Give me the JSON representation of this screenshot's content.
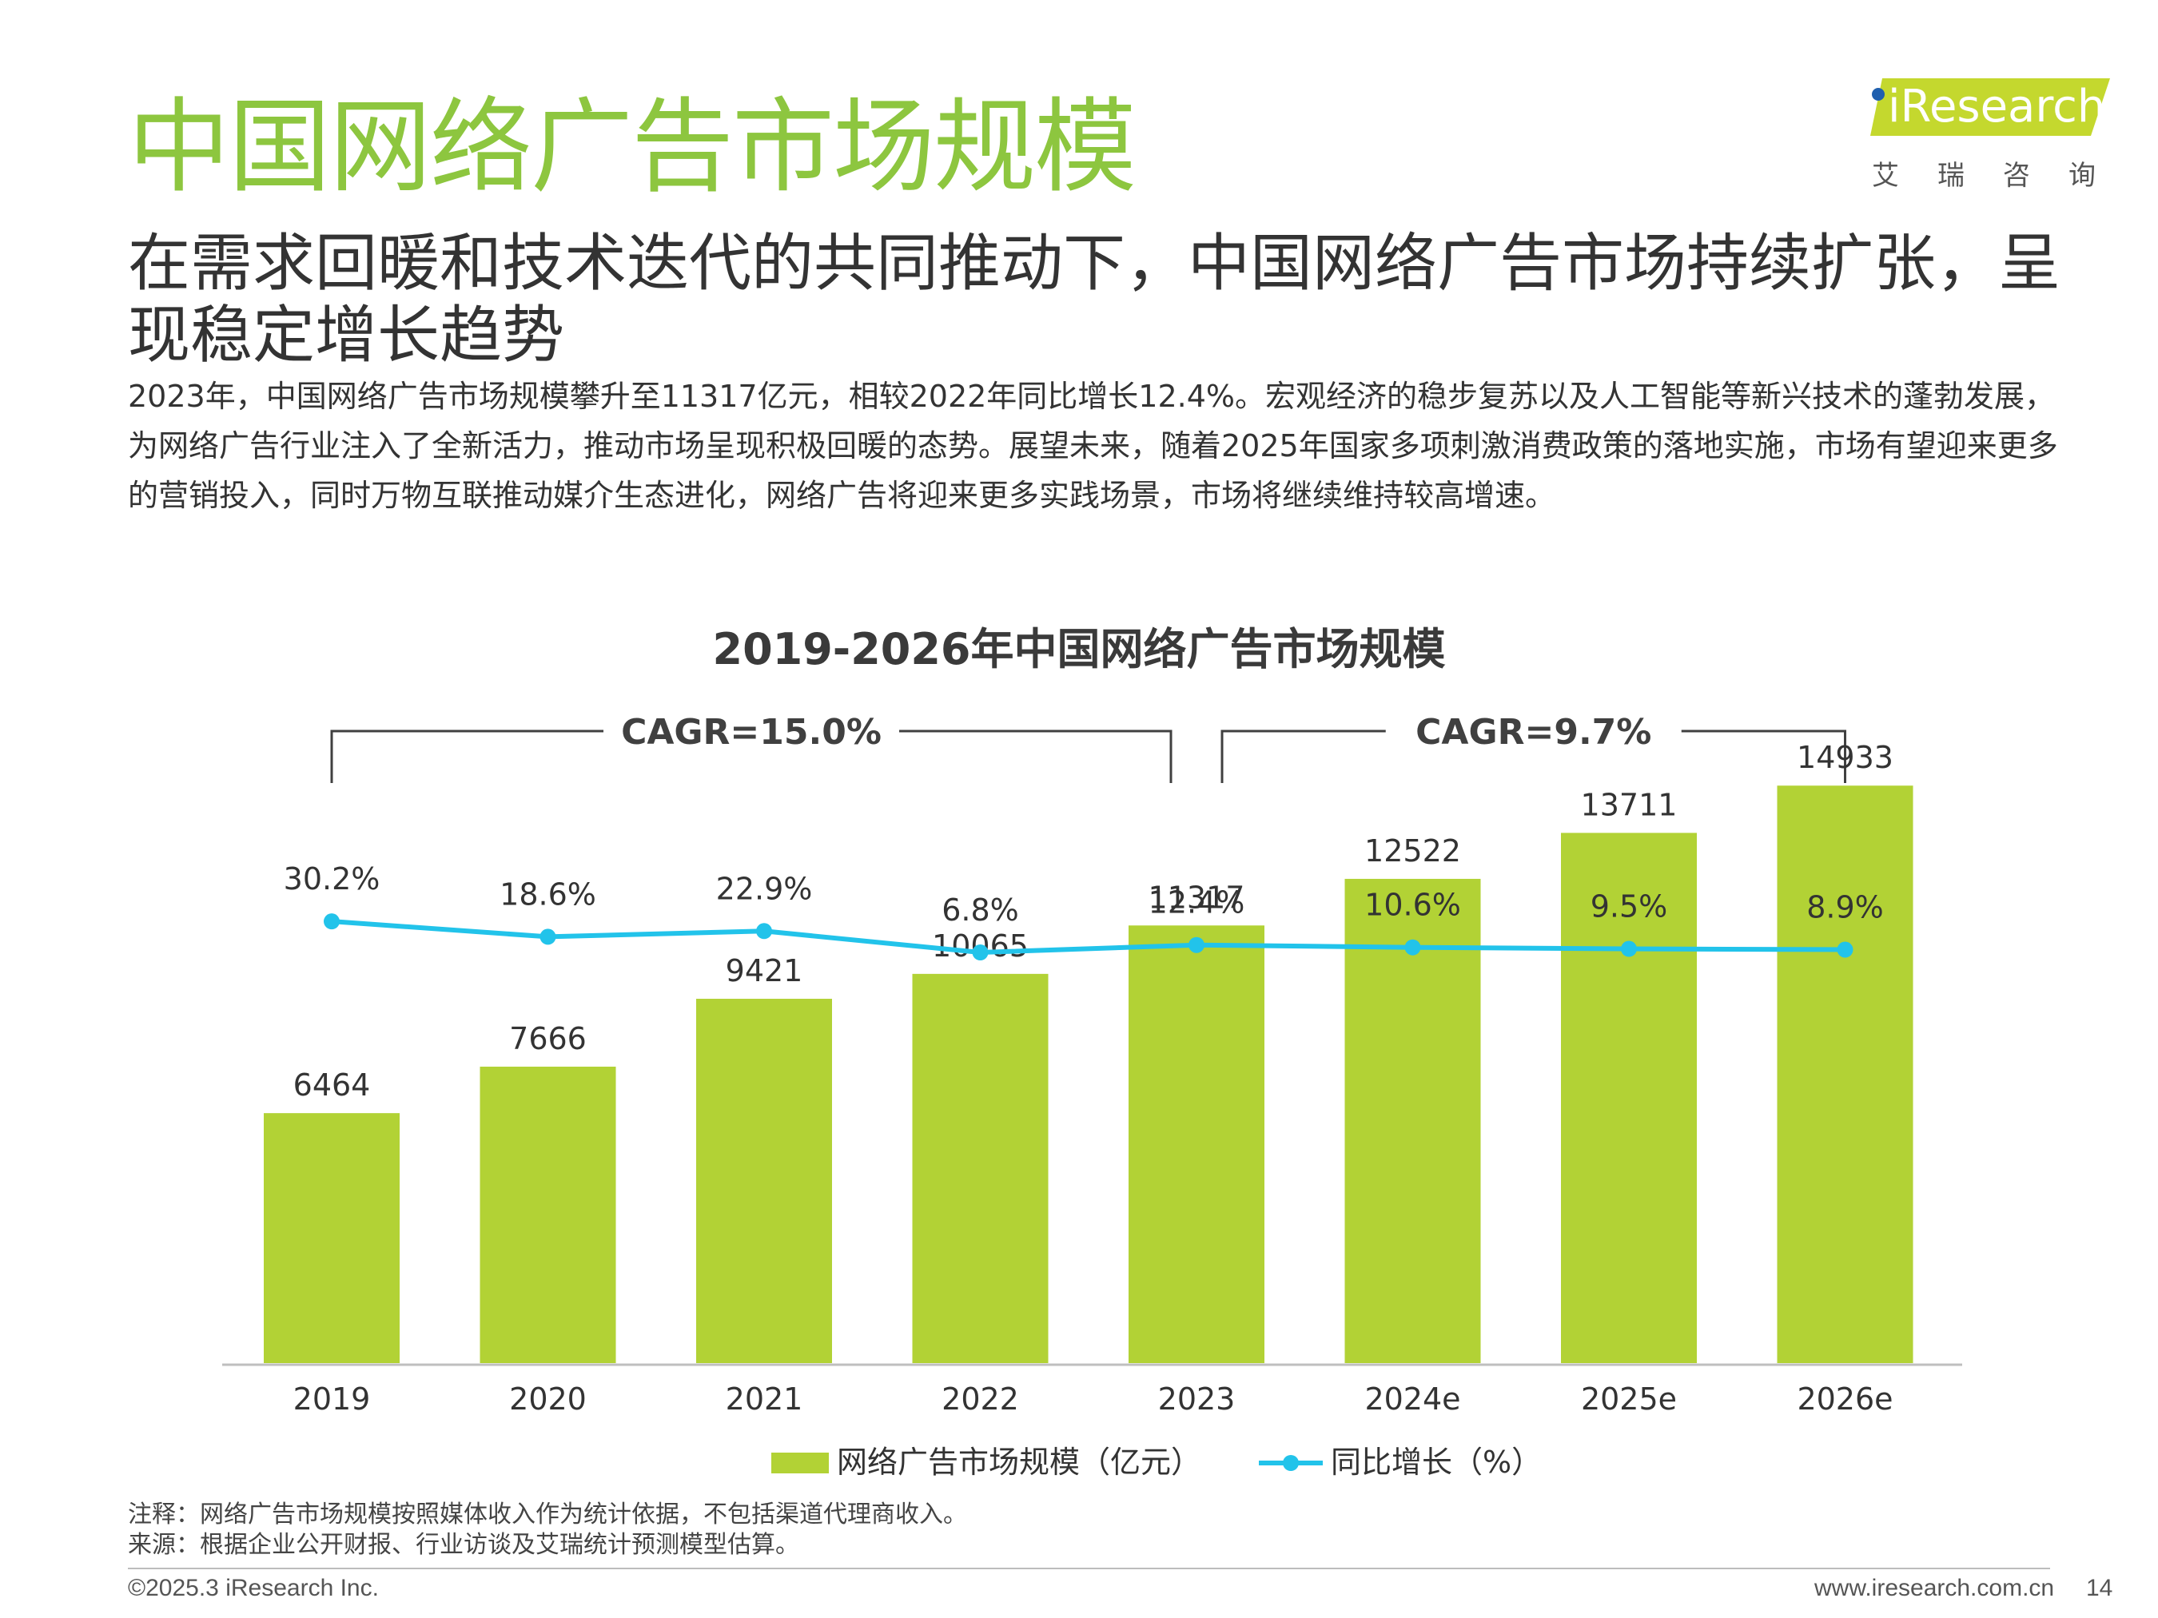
{
  "page": {
    "title": "中国网络广告市场规模",
    "subtitle": "在需求回暖和技术迭代的共同推动下，中国网络广告市场持续扩张，呈现稳定增长趋势",
    "description": "2023年，中国网络广告市场规模攀升至11317亿元，相较2022年同比增长12.4%。宏观经济的稳步复苏以及人工智能等新兴技术的蓬勃发展，为网络广告行业注入了全新活力，推动市场呈现积极回暖的态势。展望未来，随着2025年国家多项刺激消费政策的落地实施，市场有望迎来更多的营销投入，同时万物互联推动媒介生态进化，网络广告将迎来更多实践场景，市场将继续维持较高增速。",
    "note": "注释：网络广告市场规模按照媒体收入作为统计依据，不包括渠道代理商收入。",
    "source": "来源：根据企业公开财报、行业访谈及艾瑞统计预测模型估算。",
    "copyright": "©2025.3 iResearch Inc.",
    "website": "www.iresearch.com.cn",
    "page_number": "14"
  },
  "logo": {
    "brand": "iResearch",
    "subtitle": "艾瑞咨询"
  },
  "colors": {
    "title": "#8dc63f",
    "bar": "#b2d235",
    "line": "#22c3ea",
    "text": "#333333"
  },
  "chart_data": {
    "type": "bar",
    "title": "2019-2026年中国网络广告市场规模",
    "categories": [
      "2019",
      "2020",
      "2021",
      "2022",
      "2023",
      "2024e",
      "2025e",
      "2026e"
    ],
    "series": [
      {
        "name": "网络广告市场规模（亿元）",
        "type": "bar",
        "values": [
          6464,
          7666,
          9421,
          10065,
          11317,
          12522,
          13711,
          14933
        ],
        "labels": [
          "6464",
          "7666",
          "9421",
          "10065",
          "11317",
          "12522",
          "13711",
          "14933"
        ]
      },
      {
        "name": "同比增长（%）",
        "type": "line",
        "values": [
          30.2,
          18.6,
          22.9,
          6.8,
          12.4,
          10.6,
          9.5,
          8.9
        ],
        "labels": [
          "30.2%",
          "18.6%",
          "22.9%",
          "6.8%",
          "12.4%",
          "10.6%",
          "9.5%",
          "8.9%"
        ]
      }
    ],
    "annotations": [
      {
        "text": "CAGR=15.0%",
        "from": "2019",
        "to": "2023"
      },
      {
        "text": "CAGR=9.7%",
        "from": "2023",
        "to": "2026e"
      }
    ],
    "grid": false,
    "legend": "bottom"
  }
}
